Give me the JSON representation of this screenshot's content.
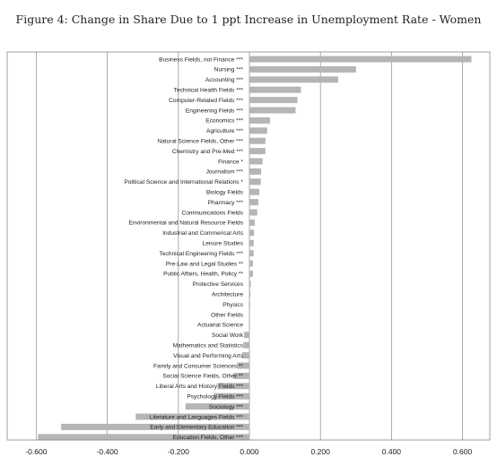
{
  "chart_data": {
    "type": "bar",
    "orientation": "horizontal",
    "title": "Figure 4: Change in Share Due to 1 ppt Increase in Unemployment Rate - Women",
    "xlabel": "",
    "ylabel": "",
    "xlim": [
      -0.6,
      0.62
    ],
    "xticks": [
      "-0.600",
      "-0.400",
      "-0.200",
      "0.000",
      "0.200",
      "0.400",
      "0.600"
    ],
    "grid": "vertical",
    "bar_color": "#b5b5b5",
    "categories": [
      "Business Fields, not Finance ***",
      "Nursing ***",
      "Accounting ***",
      "Technical Health Fields ***",
      "Computer-Related Fields ***",
      "Engineering Fields ***",
      "Economics ***",
      "Agriculture ***",
      "Natural Science Fields, Other ***",
      "Chemistry and Pre-Med ***",
      "Finance *",
      "Journalism ***",
      "Political Science and International Relations *",
      "Biology Fields",
      "Pharmacy ***",
      "Communications Fields",
      "Environmental and Natural Resource Fields",
      "Industrial and Commerical  Arts",
      "Leisure Studies",
      "Technical Engineering Fields ***",
      "Pre-Law and Legal Studies **",
      "Public Affairs, Health, Policy **",
      "Protective Services",
      "Architecture",
      "Physics",
      "Other Fields",
      "Actuarial Science",
      "Social Work",
      "Mathematics and Statistics",
      "Visual and Performing Arts",
      "Family and Consumer Sciences **",
      "Social Science Fields, Other **",
      "Liberal Arts and History Fields ***",
      "Psychology Fields ***",
      "Sociology ***",
      "Literature and Languages Fields ***",
      "Early and Elementary Education ***",
      "Education Fields, Other ***"
    ],
    "values": [
      0.625,
      0.3,
      0.25,
      0.145,
      0.135,
      0.13,
      0.058,
      0.05,
      0.045,
      0.045,
      0.037,
      0.033,
      0.032,
      0.028,
      0.025,
      0.022,
      0.015,
      0.013,
      0.012,
      0.012,
      0.01,
      0.01,
      0.004,
      0.003,
      0.002,
      0.001,
      0.001,
      -0.015,
      -0.017,
      -0.02,
      -0.035,
      -0.045,
      -0.09,
      -0.1,
      -0.18,
      -0.32,
      -0.53,
      -0.595
    ]
  }
}
